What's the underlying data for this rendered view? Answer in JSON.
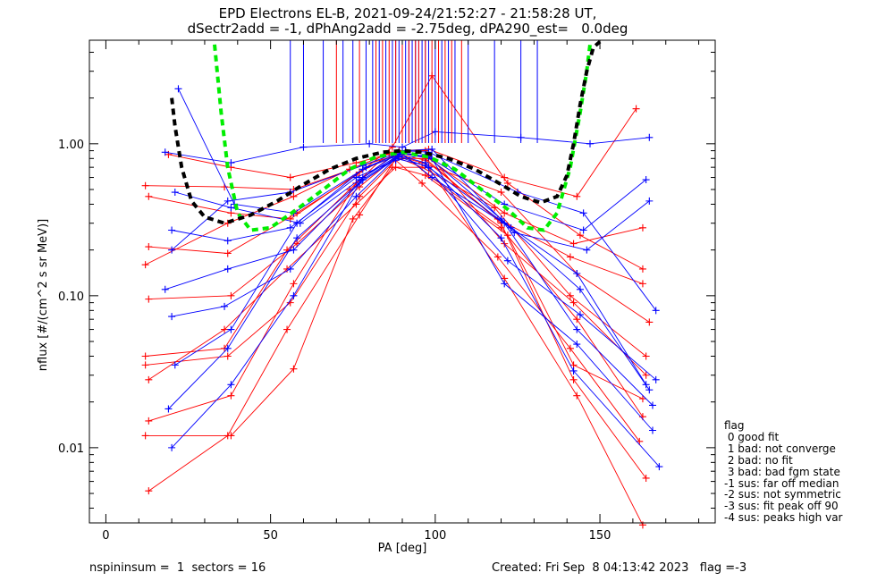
{
  "title_line1": "EPD Electrons EL-B, 2021-09-24/21:52:27 - 21:58:28 UT,",
  "title_line2": "dSectr2add = -1, dPhAng2add = -2.75deg, dPA290_est=   0.0deg",
  "footer_left": "nspininsum =  1  sectors = 16",
  "footer_right": "Created: Fri Sep  8 04:13:42 2023   flag =-3",
  "legend": {
    "title": "flag",
    "items": [
      " 0 good fit",
      " 1 bad: not converge",
      " 2 bad: no fit",
      " 3 bad: bad fgm state",
      "-1 sus: far off median",
      "-2 sus: not symmetric",
      "-3 sus: fit peak off 90",
      "-4 sus: peaks high var"
    ]
  },
  "colors": {
    "red": "#ff0000",
    "blue": "#0000ff",
    "green": "#00ee00",
    "black": "#000000"
  },
  "chart_data": {
    "type": "line",
    "xlabel": "PA [deg]",
    "ylabel": "nflux [#/(cm^2 s sr MeV)]",
    "xlim": [
      -5,
      185
    ],
    "ylim": [
      0.0032,
      4.8
    ],
    "ylog": true,
    "xticks": [
      0,
      50,
      100,
      150
    ],
    "xtick_labels": [
      "0",
      "50",
      "100",
      "150"
    ],
    "yticks": [
      0.01,
      0.1,
      1.0
    ],
    "ytick_labels": [
      "0.01",
      "0.10",
      "1.00"
    ],
    "green_fit": {
      "x": [
        33,
        35,
        37,
        40,
        44,
        50,
        58,
        66,
        74,
        82,
        90,
        98,
        106,
        114,
        122,
        128,
        133,
        137,
        141,
        144,
        146,
        147
      ],
      "y": [
        4.5,
        1.6,
        0.7,
        0.35,
        0.27,
        0.28,
        0.37,
        0.5,
        0.68,
        0.82,
        0.88,
        0.82,
        0.68,
        0.5,
        0.37,
        0.28,
        0.27,
        0.35,
        0.7,
        1.6,
        3.0,
        4.5
      ]
    },
    "black_fit": {
      "x": [
        20,
        21,
        23,
        26,
        30,
        36,
        44,
        52,
        60,
        68,
        76,
        84,
        90,
        96,
        104,
        112,
        120,
        126,
        132,
        137,
        140,
        142,
        144,
        146,
        148,
        150
      ],
      "y": [
        2.0,
        1.3,
        0.7,
        0.42,
        0.33,
        0.3,
        0.34,
        0.42,
        0.54,
        0.68,
        0.8,
        0.88,
        0.9,
        0.88,
        0.8,
        0.68,
        0.54,
        0.45,
        0.41,
        0.45,
        0.62,
        1.0,
        1.8,
        3.0,
        4.3,
        4.7
      ]
    },
    "blue_ticks_x": [
      56,
      60,
      66,
      72,
      75,
      79,
      81,
      83,
      85,
      87,
      88,
      89,
      90,
      91,
      92,
      93,
      94,
      95,
      96,
      97,
      98,
      100,
      102,
      104,
      106,
      110,
      118,
      126,
      131
    ],
    "red_ticks_x": [
      70,
      77,
      82,
      84,
      86,
      88,
      90,
      92,
      94,
      95,
      97,
      99,
      101,
      103,
      105,
      108
    ],
    "red_series": [
      {
        "x": [
          12,
          38,
          57,
          75,
          87,
          98,
          121,
          143,
          163
        ],
        "y": [
          0.012,
          0.012,
          0.033,
          0.32,
          0.7,
          0.7,
          0.13,
          0.022,
          0.0031
        ]
      },
      {
        "x": [
          13,
          37,
          55,
          77,
          88,
          97,
          120,
          142,
          164
        ],
        "y": [
          0.0052,
          0.012,
          0.06,
          0.34,
          0.8,
          0.8,
          0.3,
          0.028,
          0.0063
        ]
      },
      {
        "x": [
          13,
          38,
          57,
          76,
          89,
          98,
          120,
          143,
          163
        ],
        "y": [
          0.015,
          0.022,
          0.12,
          0.55,
          0.9,
          0.62,
          0.28,
          0.07,
          0.016
        ]
      },
      {
        "x": [
          12,
          37,
          56,
          77,
          88,
          96,
          119,
          141,
          162
        ],
        "y": [
          0.035,
          0.04,
          0.09,
          0.45,
          0.78,
          0.55,
          0.18,
          0.045,
          0.011
        ]
      },
      {
        "x": [
          12,
          36,
          55,
          74,
          86,
          97,
          121,
          142,
          164
        ],
        "y": [
          0.04,
          0.045,
          0.2,
          0.5,
          0.88,
          0.9,
          0.22,
          0.09,
          0.03
        ]
      },
      {
        "x": [
          13,
          37,
          58,
          76,
          87,
          99,
          122,
          144,
          163
        ],
        "y": [
          0.21,
          0.19,
          0.35,
          0.62,
          0.95,
          2.8,
          0.55,
          0.25,
          0.15
        ]
      },
      {
        "x": [
          12,
          36,
          57,
          78,
          89,
          97,
          119,
          141,
          163
        ],
        "y": [
          0.53,
          0.52,
          0.5,
          0.72,
          0.85,
          0.78,
          0.32,
          0.18,
          0.12
        ]
      },
      {
        "x": [
          19,
          38,
          56,
          76,
          90,
          98,
          121,
          143,
          161
        ],
        "y": [
          0.85,
          0.7,
          0.6,
          0.75,
          0.9,
          0.92,
          0.6,
          0.45,
          1.7
        ]
      },
      {
        "x": [
          13,
          38,
          58,
          77,
          88,
          96,
          118,
          141,
          164
        ],
        "y": [
          0.095,
          0.1,
          0.22,
          0.52,
          0.82,
          0.7,
          0.38,
          0.1,
          0.04
        ]
      },
      {
        "x": [
          13,
          36,
          55,
          76,
          88,
          97,
          122,
          142,
          163
        ],
        "y": [
          0.028,
          0.06,
          0.15,
          0.4,
          0.7,
          0.62,
          0.25,
          0.035,
          0.021
        ]
      },
      {
        "x": [
          12,
          37,
          57,
          74,
          86,
          96,
          120,
          143,
          165
        ],
        "y": [
          0.16,
          0.3,
          0.45,
          0.68,
          0.86,
          0.75,
          0.48,
          0.14,
          0.067
        ]
      },
      {
        "x": [
          13,
          38,
          56,
          77,
          89,
          98,
          121,
          142,
          163
        ],
        "y": [
          0.45,
          0.35,
          0.32,
          0.65,
          0.88,
          0.8,
          0.35,
          0.22,
          0.28
        ]
      }
    ],
    "blue_series": [
      {
        "x": [
          20,
          38,
          57,
          78,
          88,
          97,
          120,
          142,
          168
        ],
        "y": [
          0.01,
          0.026,
          0.1,
          0.6,
          0.85,
          0.75,
          0.24,
          0.032,
          0.0075
        ]
      },
      {
        "x": [
          18,
          37,
          57,
          77,
          89,
          98,
          121,
          143,
          166
        ],
        "y": [
          0.11,
          0.15,
          0.2,
          0.55,
          0.82,
          0.7,
          0.3,
          0.06,
          0.019
        ]
      },
      {
        "x": [
          20,
          37,
          56,
          76,
          88,
          97,
          120,
          144,
          165
        ],
        "y": [
          0.27,
          0.23,
          0.28,
          0.6,
          0.78,
          0.85,
          0.32,
          0.11,
          0.024
        ]
      },
      {
        "x": [
          21,
          38,
          58,
          78,
          90,
          99,
          123,
          143,
          164
        ],
        "y": [
          0.035,
          0.06,
          0.3,
          0.68,
          0.86,
          0.6,
          0.28,
          0.14,
          0.026
        ]
      },
      {
        "x": [
          22,
          39,
          57,
          79,
          91,
          98,
          125,
          145,
          167
        ],
        "y": [
          2.3,
          0.4,
          0.35,
          0.7,
          0.9,
          0.88,
          0.48,
          0.35,
          0.08
        ]
      },
      {
        "x": [
          18,
          38,
          60,
          80,
          90,
          100,
          126,
          147,
          165
        ],
        "y": [
          0.88,
          0.75,
          0.95,
          1.0,
          0.95,
          1.2,
          1.1,
          1.0,
          1.1
        ]
      },
      {
        "x": [
          20,
          37,
          56,
          78,
          89,
          98,
          121,
          145,
          164
        ],
        "y": [
          0.2,
          0.42,
          0.48,
          0.72,
          0.88,
          0.82,
          0.4,
          0.27,
          0.58
        ]
      },
      {
        "x": [
          21,
          38,
          59,
          77,
          91,
          99,
          124,
          146,
          165
        ],
        "y": [
          0.48,
          0.38,
          0.3,
          0.58,
          0.9,
          0.92,
          0.26,
          0.2,
          0.42
        ]
      },
      {
        "x": [
          20,
          36,
          56,
          76,
          88,
          97,
          122,
          144,
          167
        ],
        "y": [
          0.073,
          0.085,
          0.15,
          0.45,
          0.8,
          0.72,
          0.17,
          0.075,
          0.028
        ]
      },
      {
        "x": [
          19,
          37,
          58,
          78,
          90,
          99,
          121,
          143,
          166
        ],
        "y": [
          0.018,
          0.045,
          0.24,
          0.58,
          0.86,
          0.8,
          0.12,
          0.048,
          0.013
        ]
      }
    ]
  }
}
